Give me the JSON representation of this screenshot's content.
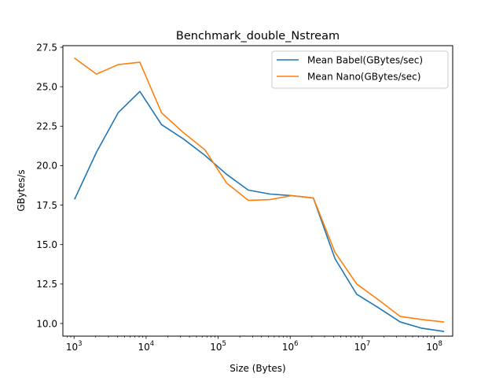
{
  "chart_data": {
    "type": "line",
    "title": "Benchmark_double_Nstream",
    "xlabel": "Size (Bytes)",
    "ylabel": "GBytes/s",
    "xscale": "log",
    "xlim": [
      700,
      180000000
    ],
    "ylim": [
      9.2,
      27.6
    ],
    "grid": false,
    "legend_position": "top-right",
    "x_ticks": [
      {
        "value": 1000,
        "base": "10",
        "exp": "3"
      },
      {
        "value": 10000,
        "base": "10",
        "exp": "4"
      },
      {
        "value": 100000,
        "base": "10",
        "exp": "5"
      },
      {
        "value": 1000000,
        "base": "10",
        "exp": "6"
      },
      {
        "value": 10000000,
        "base": "10",
        "exp": "7"
      },
      {
        "value": 100000000,
        "base": "10",
        "exp": "8"
      }
    ],
    "y_ticks": [
      "10.0",
      "12.5",
      "15.0",
      "17.5",
      "20.0",
      "22.5",
      "25.0",
      "27.5"
    ],
    "x": [
      1024,
      2048,
      4096,
      8192,
      16384,
      32768,
      65536,
      131072,
      262144,
      524288,
      1048576,
      2097152,
      4194304,
      8388608,
      16777216,
      33554432,
      67108864,
      134217728
    ],
    "series": [
      {
        "name": "Mean Babel(GBytes/sec)",
        "color": "#1f77b4",
        "values": [
          17.9,
          20.85,
          23.35,
          24.7,
          22.6,
          21.7,
          20.65,
          19.45,
          18.45,
          18.2,
          18.1,
          17.95,
          14.1,
          11.85,
          11.0,
          10.1,
          9.7,
          9.5
        ]
      },
      {
        "name": "Mean Nano(GBytes/sec)",
        "color": "#ff7f0e",
        "values": [
          26.8,
          25.8,
          26.4,
          26.55,
          23.35,
          22.1,
          21.0,
          18.9,
          17.8,
          17.85,
          18.1,
          17.95,
          14.5,
          12.5,
          11.5,
          10.45,
          10.25,
          10.1
        ]
      }
    ]
  }
}
